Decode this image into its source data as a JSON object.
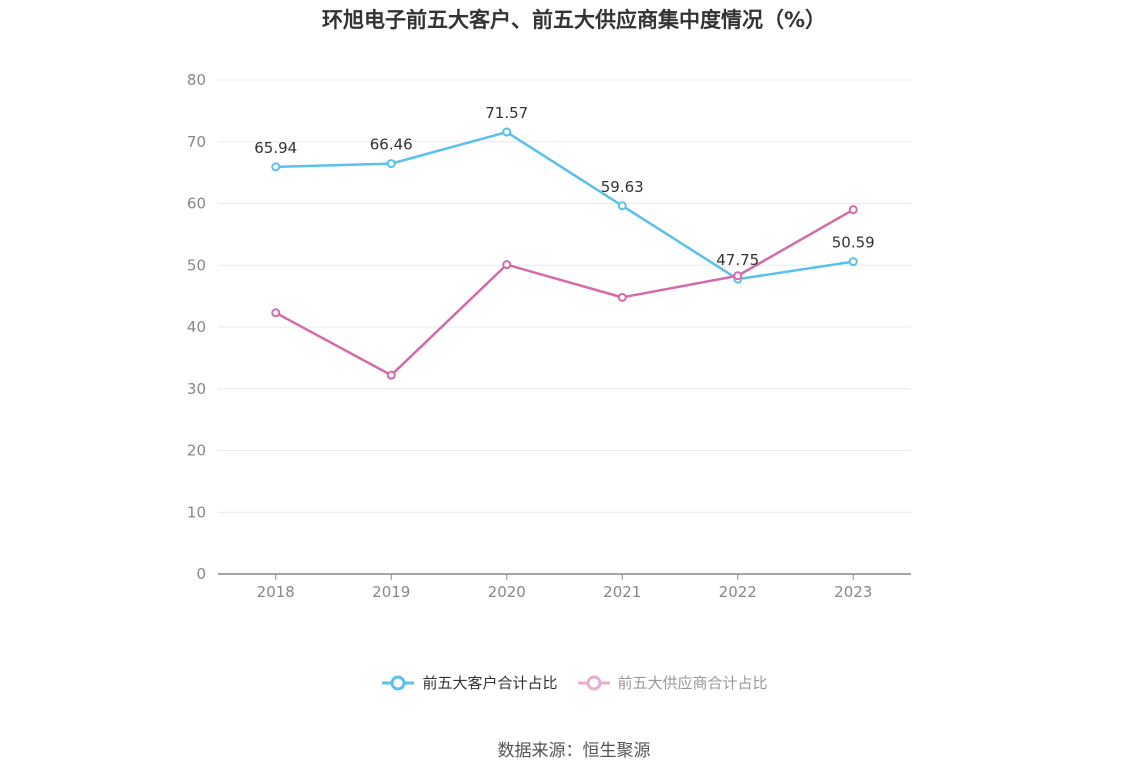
{
  "chart_data": {
    "type": "line",
    "title": "环旭电子前五大客户、前五大供应商集中度情况（%）",
    "categories": [
      "2018",
      "2019",
      "2020",
      "2021",
      "2022",
      "2023"
    ],
    "ylim": [
      0,
      80
    ],
    "yticks": [
      0,
      10,
      20,
      30,
      40,
      50,
      60,
      70,
      80
    ],
    "grid": true,
    "legend_position": "bottom",
    "series": [
      {
        "name": "前五大客户合计占比",
        "color": "#5bc0eb",
        "values": [
          65.94,
          66.46,
          71.57,
          59.63,
          47.75,
          50.59
        ],
        "labels": [
          "65.94",
          "66.46",
          "71.57",
          "59.63",
          "47.75",
          "50.59"
        ]
      },
      {
        "name": "前五大供应商合计占比",
        "color": "#d46aa9",
        "values": [
          42.3,
          32.2,
          50.1,
          44.8,
          48.3,
          59.0
        ]
      }
    ]
  },
  "legend": {
    "customers": "前五大客户合计占比",
    "suppliers": "前五大供应商合计占比"
  },
  "source": "数据来源：恒生聚源"
}
